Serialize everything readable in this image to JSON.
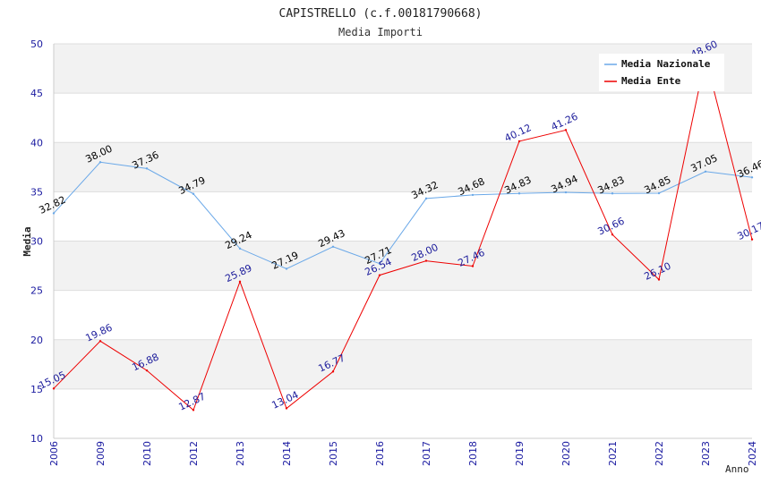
{
  "chart_data": {
    "type": "line",
    "title": "CAPISTRELLO (c.f.00181790668)",
    "subtitle": "Media Importi",
    "xlabel": "Anno",
    "ylabel": "Media",
    "ylim": [
      10,
      50
    ],
    "yticks": [
      "10",
      "15",
      "20",
      "25",
      "30",
      "35",
      "40",
      "45",
      "50"
    ],
    "categories": [
      "2006",
      "2009",
      "2010",
      "2012",
      "2013",
      "2014",
      "2015",
      "2016",
      "2017",
      "2018",
      "2019",
      "2020",
      "2021",
      "2022",
      "2023",
      "2024"
    ],
    "grid": true,
    "legend_position": "top-right",
    "series": [
      {
        "name": "Media Nazionale",
        "color": "#6aa8e8",
        "label_color": "#000000",
        "values": [
          32.82,
          38.0,
          37.36,
          34.79,
          29.24,
          27.19,
          29.43,
          27.71,
          34.32,
          34.68,
          34.83,
          34.94,
          34.83,
          34.85,
          37.05,
          36.46
        ],
        "labels": [
          "32.82",
          "38.00",
          "37.36",
          "34.79",
          "29.24",
          "27.19",
          "29.43",
          "27.71",
          "34.32",
          "34.68",
          "34.83",
          "34.94",
          "34.83",
          "34.85",
          "37.05",
          "36.46"
        ]
      },
      {
        "name": "Media Ente",
        "color": "#ee0000",
        "label_color": "#1a1a9a",
        "values": [
          15.05,
          19.86,
          16.88,
          12.87,
          25.89,
          13.04,
          16.77,
          26.54,
          28.0,
          27.46,
          40.12,
          41.26,
          30.66,
          26.1,
          48.6,
          30.17
        ],
        "labels": [
          "15.05",
          "19.86",
          "16.88",
          "12.87",
          "25.89",
          "13.04",
          "16.77",
          "26.54",
          "28.00",
          "27.46",
          "40.12",
          "41.26",
          "30.66",
          "26.10",
          "48.60",
          "30.17"
        ]
      }
    ],
    "colors": {
      "axis_tick_label": "#1a1aa0",
      "band": "#f2f2f2",
      "gridline": "#dddddd",
      "title": "#222222"
    }
  }
}
